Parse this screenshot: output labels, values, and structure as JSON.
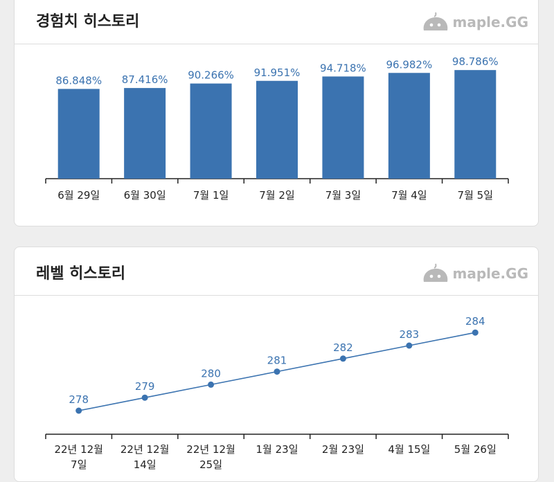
{
  "colors": {
    "accent": "#3b73b0",
    "text": "#222222",
    "brand": "#b9b9b9"
  },
  "exp_card": {
    "title": "경험치 히스토리",
    "brand_icon": "slime-logo-icon",
    "brand_text": "maple.GG"
  },
  "level_card": {
    "title": "레벨 히스토리",
    "brand_icon": "slime-logo-icon",
    "brand_text": "maple.GG"
  },
  "chart_data": [
    {
      "type": "bar",
      "title": "경험치 히스토리",
      "categories": [
        "6월 29일",
        "6월 30일",
        "7월 1일",
        "7월 2일",
        "7월 3일",
        "7월 4일",
        "7월 5일"
      ],
      "values": [
        86.848,
        87.416,
        90.266,
        91.951,
        94.718,
        96.982,
        98.786
      ],
      "value_labels": [
        "86.848%",
        "87.416%",
        "90.266%",
        "91.951%",
        "94.718%",
        "96.982%",
        "98.786%"
      ],
      "ylim": [
        0,
        100
      ],
      "grid": false,
      "legend": "none"
    },
    {
      "type": "line",
      "title": "레벨 히스토리",
      "categories": [
        [
          "22년 12월",
          "7일"
        ],
        [
          "22년 12월",
          "14일"
        ],
        [
          "22년 12월",
          "25일"
        ],
        [
          "1월 23일"
        ],
        [
          "2월 23일"
        ],
        [
          "4월 15일"
        ],
        [
          "5월 26일"
        ]
      ],
      "values": [
        278,
        279,
        280,
        281,
        282,
        283,
        284
      ],
      "value_labels": [
        "278",
        "279",
        "280",
        "281",
        "282",
        "283",
        "284"
      ],
      "grid": false,
      "legend": "none"
    }
  ]
}
